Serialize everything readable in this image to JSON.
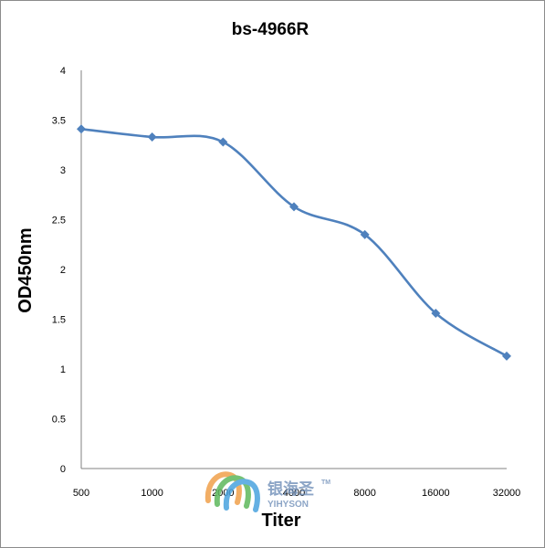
{
  "chart_data": {
    "type": "line",
    "title": "bs-4966R",
    "xlabel": "Titer",
    "ylabel": "OD450nm",
    "categories": [
      "500",
      "1000",
      "2000",
      "4000",
      "8000",
      "16000",
      "32000"
    ],
    "series": [
      {
        "values": [
          3.41,
          3.33,
          3.28,
          2.63,
          2.35,
          1.56,
          1.13
        ]
      }
    ],
    "ylim": [
      0,
      4
    ],
    "yticks": [
      "0",
      "0.5",
      "1",
      "1.5",
      "2",
      "2.5",
      "3",
      "3.5",
      "4"
    ],
    "grid": false,
    "legend": "none",
    "colors": {
      "series": "#4f81bd",
      "axis": "#808080"
    }
  },
  "watermark": {
    "name_cn": "银海圣",
    "name_en": "YIHYSON",
    "tm": "TM"
  }
}
